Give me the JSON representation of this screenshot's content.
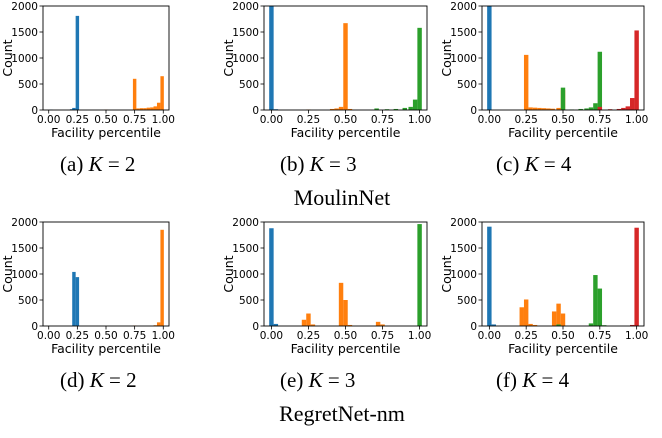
{
  "chart_data": [
    {
      "type": "bar",
      "id": "a",
      "xlabel": "Facility percentile",
      "ylabel": "Count",
      "xlim": [
        -0.05,
        1.05
      ],
      "ylim": [
        0,
        2000
      ],
      "xticks": [
        "0.00",
        "0.25",
        "0.50",
        "0.75",
        "1.00"
      ],
      "yticks": [
        "0",
        "500",
        "1000",
        "1500",
        "2000"
      ],
      "caption": {
        "tag": "(a)",
        "var": "K",
        "eq": " = 2"
      },
      "series": [
        {
          "color": "#1f77b4",
          "bins": [
            [
              0.02,
              8
            ],
            [
              0.2,
              15
            ],
            [
              0.22,
              40
            ],
            [
              0.25,
              1810
            ]
          ]
        },
        {
          "color": "#ff7f0e",
          "bins": [
            [
              0.5,
              8
            ],
            [
              0.75,
              600
            ],
            [
              0.78,
              30
            ],
            [
              0.81,
              35
            ],
            [
              0.84,
              35
            ],
            [
              0.87,
              45
            ],
            [
              0.9,
              50
            ],
            [
              0.93,
              70
            ],
            [
              0.96,
              140
            ],
            [
              0.99,
              650
            ]
          ]
        }
      ]
    },
    {
      "type": "bar",
      "id": "b",
      "xlabel": "Facility percentile",
      "ylabel": "Count",
      "xlim": [
        -0.05,
        1.05
      ],
      "ylim": [
        0,
        2000
      ],
      "xticks": [
        "0.00",
        "0.25",
        "0.50",
        "0.75",
        "1.00"
      ],
      "yticks": [
        "0",
        "500",
        "1000",
        "1500",
        "2000"
      ],
      "caption": {
        "tag": "(b)",
        "var": "K",
        "eq": " = 3"
      },
      "series": [
        {
          "color": "#1f77b4",
          "bins": [
            [
              0.0,
              2000
            ],
            [
              0.03,
              15
            ]
          ]
        },
        {
          "color": "#ff7f0e",
          "bins": [
            [
              0.25,
              10
            ],
            [
              0.41,
              20
            ],
            [
              0.44,
              30
            ],
            [
              0.47,
              60
            ],
            [
              0.5,
              1670
            ],
            [
              0.53,
              20
            ]
          ]
        },
        {
          "color": "#2ca02c",
          "bins": [
            [
              0.71,
              30
            ],
            [
              0.78,
              15
            ],
            [
              0.84,
              20
            ],
            [
              0.9,
              40
            ],
            [
              0.94,
              60
            ],
            [
              0.97,
              200
            ],
            [
              1.0,
              1580
            ]
          ]
        }
      ]
    },
    {
      "type": "bar",
      "id": "c",
      "xlabel": "Facility percentile",
      "ylabel": "Count",
      "xlim": [
        -0.05,
        1.05
      ],
      "ylim": [
        0,
        2000
      ],
      "xticks": [
        "0.00",
        "0.25",
        "0.50",
        "0.75",
        "1.00"
      ],
      "yticks": [
        "0",
        "500",
        "1000",
        "1500",
        "2000"
      ],
      "caption": {
        "tag": "(c)",
        "var": "K",
        "eq": " = 4"
      },
      "series": [
        {
          "color": "#1f77b4",
          "bins": [
            [
              0.0,
              2000
            ]
          ]
        },
        {
          "color": "#ff7f0e",
          "bins": [
            [
              0.25,
              1060
            ],
            [
              0.28,
              50
            ],
            [
              0.31,
              45
            ],
            [
              0.34,
              40
            ],
            [
              0.37,
              35
            ],
            [
              0.4,
              30
            ],
            [
              0.43,
              25
            ],
            [
              0.47,
              40
            ],
            [
              0.5,
              380
            ]
          ]
        },
        {
          "color": "#2ca02c",
          "bins": [
            [
              0.5,
              430
            ],
            [
              0.56,
              10
            ],
            [
              0.62,
              20
            ],
            [
              0.66,
              30
            ],
            [
              0.69,
              50
            ],
            [
              0.72,
              130
            ],
            [
              0.75,
              1120
            ]
          ]
        },
        {
          "color": "#d62728",
          "bins": [
            [
              0.75,
              60
            ],
            [
              0.82,
              15
            ],
            [
              0.88,
              20
            ],
            [
              0.91,
              40
            ],
            [
              0.94,
              70
            ],
            [
              0.97,
              230
            ],
            [
              1.0,
              1530
            ]
          ]
        }
      ]
    },
    {
      "type": "bar",
      "id": "d",
      "xlabel": "Facility percentile",
      "ylabel": "Count",
      "xlim": [
        -0.05,
        1.05
      ],
      "ylim": [
        0,
        2000
      ],
      "xticks": [
        "0.00",
        "0.25",
        "0.50",
        "0.75",
        "1.00"
      ],
      "yticks": [
        "0",
        "500",
        "1000",
        "1500",
        "2000"
      ],
      "caption": {
        "tag": "(d)",
        "var": "K",
        "eq": " = 2"
      },
      "series": [
        {
          "color": "#1f77b4",
          "bins": [
            [
              0.22,
              1040
            ],
            [
              0.25,
              940
            ]
          ]
        },
        {
          "color": "#ff7f0e",
          "bins": [
            [
              0.75,
              10
            ],
            [
              0.93,
              15
            ],
            [
              0.96,
              70
            ],
            [
              0.99,
              1850
            ]
          ]
        }
      ]
    },
    {
      "type": "bar",
      "id": "e",
      "xlabel": "Facility percentile",
      "ylabel": "Count",
      "xlim": [
        -0.05,
        1.05
      ],
      "ylim": [
        0,
        2000
      ],
      "xticks": [
        "0.00",
        "0.25",
        "0.50",
        "0.75",
        "1.00"
      ],
      "yticks": [
        "0",
        "500",
        "1000",
        "1500",
        "2000"
      ],
      "caption": {
        "tag": "(e)",
        "var": "K",
        "eq": " = 3"
      },
      "series": [
        {
          "color": "#1f77b4",
          "bins": [
            [
              0.0,
              1880
            ],
            [
              0.03,
              40
            ]
          ]
        },
        {
          "color": "#ff7f0e",
          "bins": [
            [
              0.22,
              120
            ],
            [
              0.25,
              240
            ],
            [
              0.28,
              30
            ],
            [
              0.47,
              830
            ],
            [
              0.5,
              500
            ],
            [
              0.53,
              20
            ],
            [
              0.72,
              80
            ],
            [
              0.75,
              30
            ]
          ]
        },
        {
          "color": "#2ca02c",
          "bins": [
            [
              1.0,
              1960
            ]
          ]
        }
      ]
    },
    {
      "type": "bar",
      "id": "f",
      "xlabel": "Facility percentile",
      "ylabel": "Count",
      "xlim": [
        -0.05,
        1.05
      ],
      "ylim": [
        0,
        2000
      ],
      "xticks": [
        "0.00",
        "0.25",
        "0.50",
        "0.75",
        "1.00"
      ],
      "yticks": [
        "0",
        "500",
        "1000",
        "1500",
        "2000"
      ],
      "caption": {
        "tag": "(f)",
        "var": "K",
        "eq": " = 4"
      },
      "series": [
        {
          "color": "#1f77b4",
          "bins": [
            [
              0.0,
              1910
            ],
            [
              0.03,
              30
            ]
          ]
        },
        {
          "color": "#ff7f0e",
          "bins": [
            [
              0.22,
              360
            ],
            [
              0.25,
              510
            ],
            [
              0.28,
              40
            ],
            [
              0.31,
              20
            ],
            [
              0.44,
              280
            ],
            [
              0.47,
              430
            ],
            [
              0.5,
              240
            ]
          ]
        },
        {
          "color": "#2ca02c",
          "bins": [
            [
              0.47,
              30
            ],
            [
              0.69,
              50
            ],
            [
              0.72,
              980
            ],
            [
              0.75,
              720
            ],
            [
              0.78,
              15
            ]
          ]
        },
        {
          "color": "#d62728",
          "bins": [
            [
              0.97,
              20
            ],
            [
              1.0,
              1890
            ]
          ]
        }
      ]
    }
  ],
  "row_titles": [
    "MoulinNet",
    "RegretNet-nm"
  ]
}
